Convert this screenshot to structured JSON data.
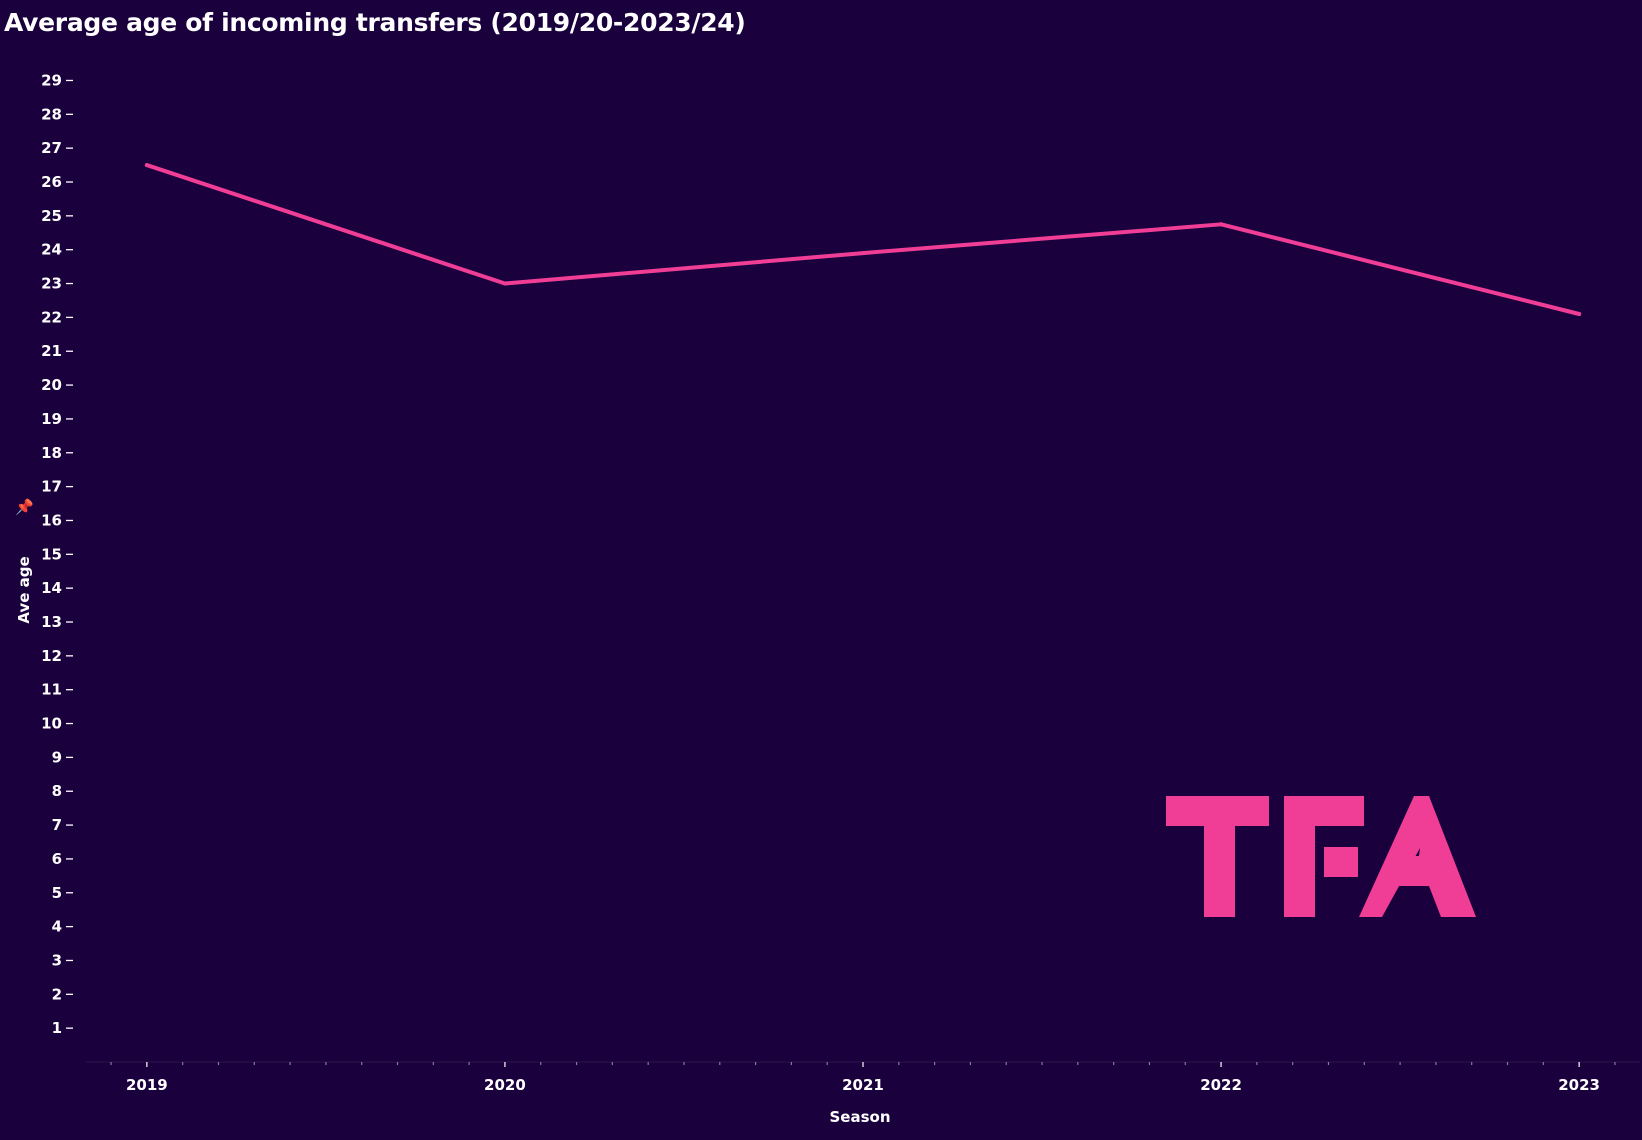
{
  "title": "Average age of incoming transfers (2019/20-2023/24)",
  "chart_data": {
    "type": "line",
    "title": "Average age of incoming transfers (2019/20-2023/24)",
    "xlabel": "Season",
    "ylabel": "Ave age",
    "x": [
      2019,
      2020,
      2021,
      2022,
      2023
    ],
    "series": [
      {
        "values": [
          26.5,
          23.0,
          23.9,
          24.75,
          22.1
        ],
        "color": "#f03d96"
      }
    ],
    "yticks": [
      1,
      2,
      3,
      4,
      5,
      6,
      7,
      8,
      9,
      10,
      11,
      12,
      13,
      14,
      15,
      16,
      17,
      18,
      19,
      20,
      21,
      22,
      23,
      24,
      25,
      26,
      27,
      28,
      29
    ],
    "xticks": [
      "2019",
      "2020",
      "2021",
      "2022",
      "2023"
    ],
    "ylim": [
      0,
      29.9
    ],
    "xlim": [
      2018.83,
      2023.17
    ],
    "grid": false,
    "colors": {
      "background": "#1a003c",
      "line": "#f03d96",
      "text": "#ffffff"
    }
  },
  "logo": {
    "text": "TFA",
    "color": "#f03d96",
    "icon": "tfa-logo"
  },
  "pin_icon": "pin-icon"
}
